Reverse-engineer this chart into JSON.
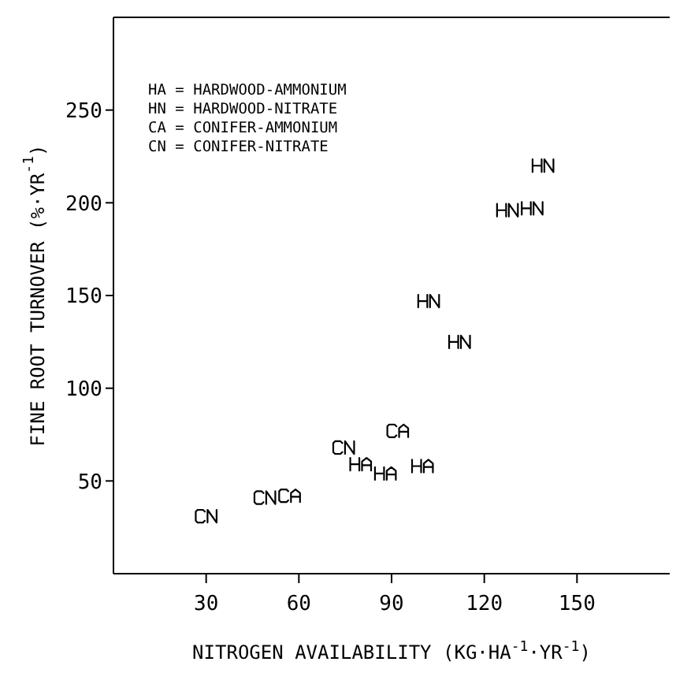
{
  "chart_data": {
    "type": "scatter",
    "xlabel": "NITROGEN AVAILABILITY (KG·HA$^{-1}$·YR$^{-1}$)",
    "ylabel": "FINE ROOT TURNOVER (%·YR$^{-1}$)",
    "annotations": [
      "HA = HARDWOOD-AMMONIUM",
      "HN = HARDWOOD-NITRATE",
      "CA = CONIFER-AMMONIUM",
      "CN = CONIFER-NITRATE"
    ],
    "xlim": [
      0,
      180
    ],
    "xticks": [
      30,
      60,
      90,
      120,
      150
    ],
    "ylim": [
      0,
      300
    ],
    "yticks": [
      50,
      100,
      150,
      200,
      250
    ],
    "grid": false,
    "series": [
      {
        "color": "#000000",
        "x": [
          80,
          88,
          100
        ],
        "values": [
          59,
          54,
          58
        ]
      },
      {
        "color": "#000000",
        "x": [
          102,
          112,
          127.5,
          135.5,
          139
        ],
        "values": [
          147,
          125,
          196,
          197,
          220
        ]
      },
      {
        "color": "#000000",
        "x": [
          57,
          92
        ],
        "values": [
          42,
          77
        ]
      },
      {
        "color": "#000000",
        "x": [
          30,
          49,
          74.5
        ],
        "values": [
          31,
          41,
          68
        ]
      }
    ]
  }
}
